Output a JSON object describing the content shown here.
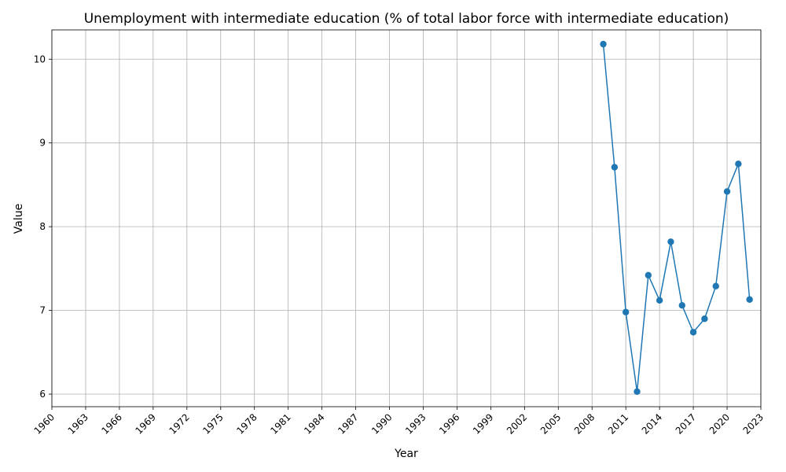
{
  "chart_data": {
    "type": "line",
    "title": "Unemployment with intermediate education (% of total labor force with intermediate education)",
    "xlabel": "Year",
    "ylabel": "Value",
    "xlim": [
      1960,
      2023
    ],
    "ylim": [
      5.85,
      10.35
    ],
    "x_ticks": [
      1960,
      1963,
      1966,
      1969,
      1972,
      1975,
      1978,
      1981,
      1984,
      1987,
      1990,
      1993,
      1996,
      1999,
      2002,
      2005,
      2008,
      2011,
      2014,
      2017,
      2020,
      2023
    ],
    "y_ticks": [
      6,
      7,
      8,
      9,
      10
    ],
    "grid": true,
    "color": "#1f77b4",
    "series": [
      {
        "x": [
          2009,
          2010,
          2011,
          2012,
          2013,
          2014,
          2015,
          2016,
          2017,
          2018,
          2019,
          2020,
          2021,
          2022
        ],
        "values": [
          10.18,
          8.71,
          6.98,
          6.03,
          7.42,
          7.12,
          7.82,
          7.06,
          6.74,
          6.9,
          7.29,
          8.42,
          8.75,
          7.13
        ]
      }
    ]
  }
}
